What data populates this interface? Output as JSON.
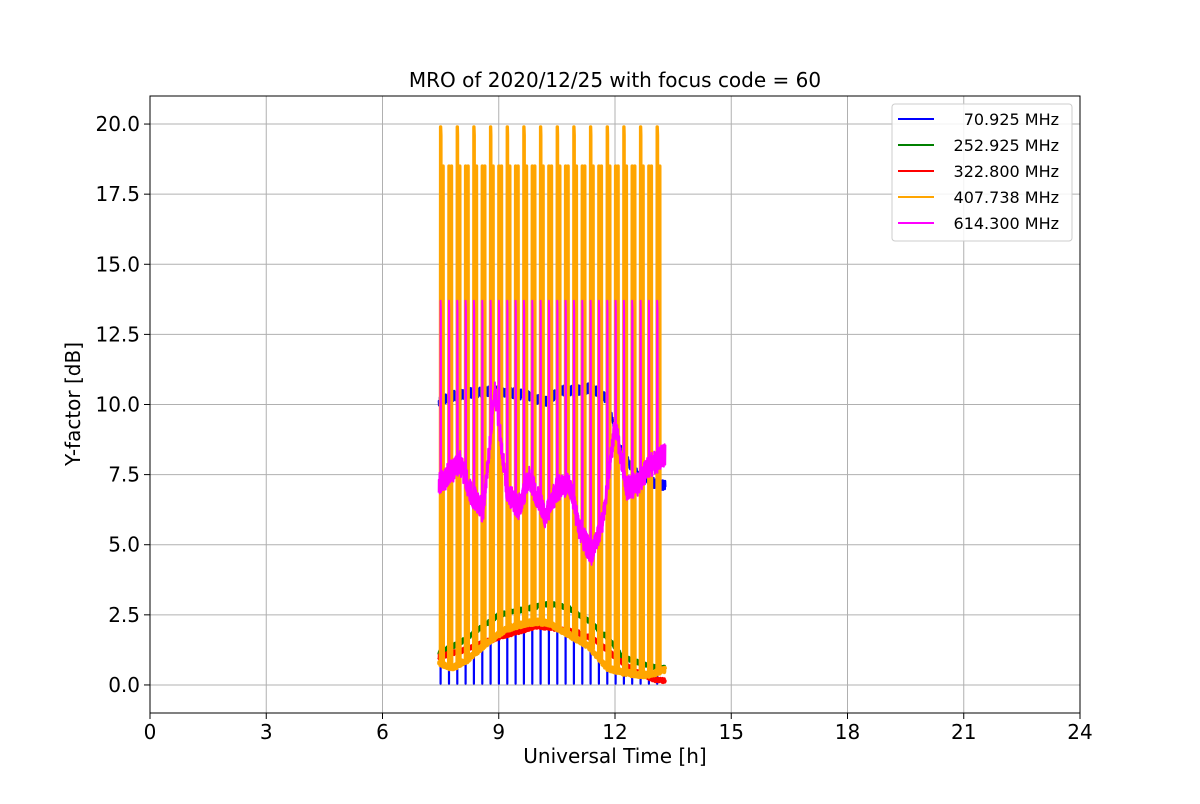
{
  "chart_data": {
    "type": "line",
    "title": "MRO of 2020/12/25 with focus code = 60",
    "xlabel": "Universal Time [h]",
    "ylabel": "Y-factor [dB]",
    "xlim": [
      0,
      24
    ],
    "ylim": [
      -1.0,
      21.0
    ],
    "xticks": [
      0,
      3,
      6,
      9,
      12,
      15,
      18,
      21,
      24
    ],
    "yticks": [
      0.0,
      2.5,
      5.0,
      7.5,
      10.0,
      12.5,
      15.0,
      17.5,
      20.0
    ],
    "xtick_labels": [
      "0",
      "3",
      "6",
      "9",
      "12",
      "15",
      "18",
      "21",
      "24"
    ],
    "ytick_labels": [
      "0.0",
      "2.5",
      "5.0",
      "7.5",
      "10.0",
      "12.5",
      "15.0",
      "17.5",
      "20.0"
    ],
    "grid": true,
    "legend_position": "top-right",
    "data_start_h": 7.45,
    "data_end_h": 13.3,
    "calibration_spikes": {
      "count": 28,
      "first_h": 7.5,
      "spacing_h": 0.215
    },
    "series": [
      {
        "name": "70.925 MHz",
        "color": "#0000ff",
        "x": [
          7.45,
          7.8,
          8.2,
          8.6,
          9.0,
          9.4,
          9.8,
          10.2,
          10.6,
          11.0,
          11.4,
          11.8,
          12.0,
          12.2,
          12.6,
          13.0,
          13.3
        ],
        "y": [
          10.1,
          10.3,
          10.4,
          10.45,
          10.5,
          10.4,
          10.3,
          10.1,
          10.5,
          10.5,
          10.6,
          10.2,
          9.0,
          8.2,
          7.5,
          7.2,
          7.1
        ],
        "spike_min": 0.05
      },
      {
        "name": "252.925 MHz",
        "color": "#008000",
        "x": [
          7.45,
          8.0,
          8.5,
          9.0,
          9.5,
          10.0,
          10.3,
          10.8,
          11.3,
          11.8,
          12.2,
          12.6,
          13.0,
          13.3
        ],
        "y": [
          1.15,
          1.5,
          2.0,
          2.5,
          2.65,
          2.8,
          2.9,
          2.75,
          2.3,
          1.7,
          1.0,
          0.8,
          0.65,
          0.6
        ]
      },
      {
        "name": "322.800 MHz",
        "color": "#ff0000",
        "x": [
          7.45,
          8.0,
          8.5,
          9.0,
          9.5,
          10.0,
          10.5,
          11.0,
          11.5,
          12.0,
          12.5,
          13.0,
          13.3
        ],
        "y": [
          1.0,
          1.2,
          1.45,
          1.7,
          1.9,
          2.1,
          2.0,
          1.9,
          1.6,
          1.0,
          0.5,
          0.2,
          0.15
        ]
      },
      {
        "name": "407.738 MHz",
        "color": "#ffa500",
        "x": [
          7.45,
          7.8,
          8.2,
          8.7,
          9.2,
          9.7,
          10.0,
          10.3,
          10.8,
          11.3,
          11.8,
          12.2,
          12.7,
          13.0,
          13.3
        ],
        "y": [
          0.8,
          0.6,
          0.9,
          1.5,
          2.0,
          2.2,
          2.25,
          2.2,
          1.8,
          1.4,
          0.6,
          0.45,
          0.35,
          0.4,
          0.55
        ],
        "spike_peak": 19.9,
        "spike_secondary": 18.5
      },
      {
        "name": "614.300 MHz",
        "color": "#ff00ff",
        "x": [
          7.45,
          7.7,
          8.0,
          8.3,
          8.6,
          8.9,
          9.2,
          9.5,
          9.8,
          10.2,
          10.5,
          10.8,
          11.1,
          11.4,
          11.7,
          12.0,
          12.3,
          12.6,
          12.9,
          13.3
        ],
        "y": [
          7.2,
          7.5,
          7.9,
          6.8,
          6.2,
          10.5,
          7.0,
          6.3,
          7.4,
          6.0,
          7.0,
          7.2,
          5.5,
          4.6,
          6.0,
          9.3,
          7.0,
          7.2,
          7.8,
          8.2
        ],
        "spike_peak": 13.7
      }
    ]
  }
}
